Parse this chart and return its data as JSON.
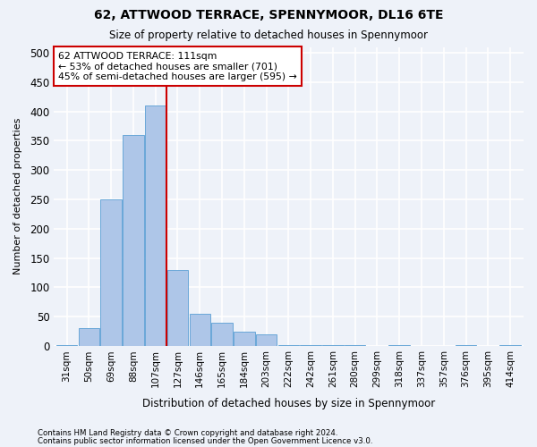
{
  "title": "62, ATTWOOD TERRACE, SPENNYMOOR, DL16 6TE",
  "subtitle": "Size of property relative to detached houses in Spennymoor",
  "xlabel": "Distribution of detached houses by size in Spennymoor",
  "ylabel": "Number of detached properties",
  "footnote1": "Contains HM Land Registry data © Crown copyright and database right 2024.",
  "footnote2": "Contains public sector information licensed under the Open Government Licence v3.0.",
  "categories": [
    "31sqm",
    "50sqm",
    "69sqm",
    "88sqm",
    "107sqm",
    "127sqm",
    "146sqm",
    "165sqm",
    "184sqm",
    "203sqm",
    "222sqm",
    "242sqm",
    "261sqm",
    "280sqm",
    "299sqm",
    "318sqm",
    "337sqm",
    "357sqm",
    "376sqm",
    "395sqm",
    "414sqm"
  ],
  "values": [
    2,
    30,
    250,
    360,
    410,
    130,
    55,
    40,
    25,
    20,
    2,
    2,
    2,
    2,
    0,
    2,
    0,
    0,
    2,
    0,
    2
  ],
  "bar_color": "#aec6e8",
  "bar_edge_color": "#5a9fd4",
  "property_label": "62 ATTWOOD TERRACE: 111sqm",
  "pct_smaller": "53% of detached houses are smaller (701)",
  "pct_larger": "45% of semi-detached houses are larger (595)",
  "vline_color": "#cc0000",
  "annotation_box_color": "#cc0000",
  "background_color": "#eef2f9",
  "grid_color": "#ffffff",
  "ylim": [
    0,
    510
  ],
  "yticks": [
    0,
    50,
    100,
    150,
    200,
    250,
    300,
    350,
    400,
    450,
    500
  ],
  "vline_x_index": 4.5
}
